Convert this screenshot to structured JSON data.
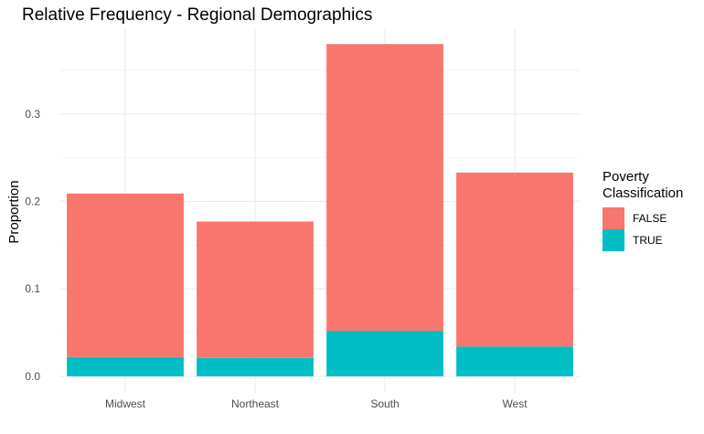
{
  "chart_data": {
    "type": "bar",
    "stacked": true,
    "title": "Relative Frequency - Regional Demographics",
    "xlabel": "",
    "ylabel": "Proportion",
    "categories": [
      "Midwest",
      "Northeast",
      "South",
      "West"
    ],
    "series": [
      {
        "name": "FALSE",
        "color": "#F8766D",
        "values": [
          0.187,
          0.156,
          0.328,
          0.199
        ]
      },
      {
        "name": "TRUE",
        "color": "#00BFC4",
        "values": [
          0.022,
          0.021,
          0.052,
          0.034
        ]
      }
    ],
    "yticks": [
      0.0,
      0.1,
      0.2,
      0.3
    ],
    "ytick_labels": [
      "0.0",
      "0.1",
      "0.2",
      "0.3"
    ],
    "ylim": [
      -0.019,
      0.397
    ],
    "grid": true,
    "legend": {
      "title_lines": [
        "Poverty",
        "Classification"
      ],
      "placement": "right"
    }
  }
}
